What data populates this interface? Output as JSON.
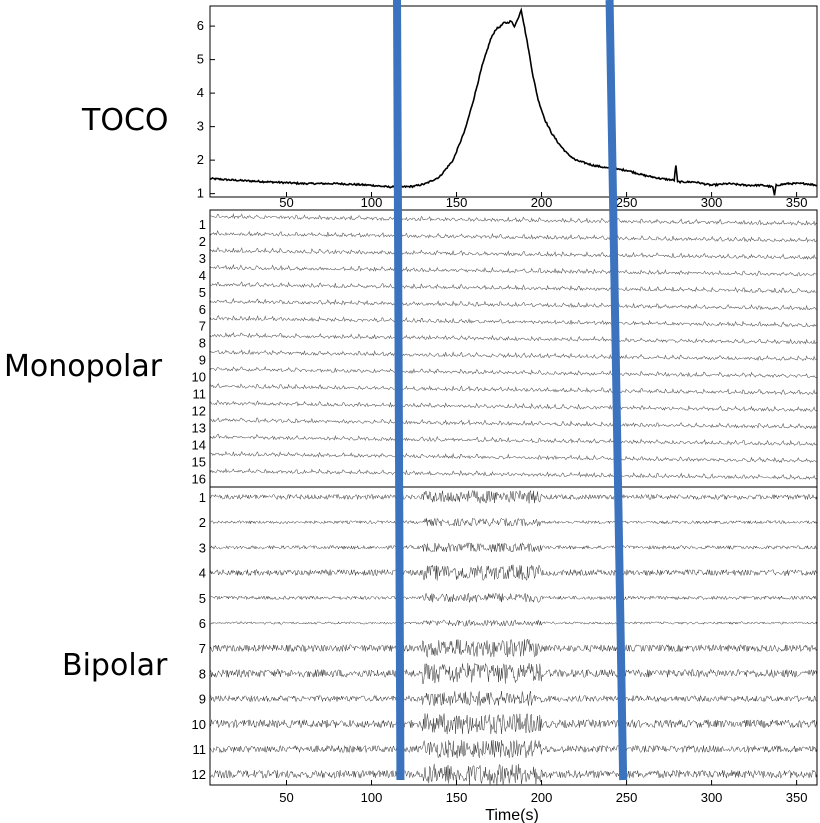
{
  "chart_data": {
    "type": "line",
    "x_axis": {
      "label": "Time(s)",
      "range": [
        5,
        362
      ],
      "ticks": [
        50,
        100,
        150,
        200,
        250,
        300,
        350
      ]
    },
    "panels": [
      {
        "name": "TOCO",
        "label": "TOCO",
        "ylim": [
          0.9,
          6.6
        ],
        "yticks": [
          1,
          2,
          3,
          4,
          5,
          6
        ],
        "series": [
          {
            "x": [
              5,
              20,
              40,
              60,
              80,
              100,
              110,
              118,
              125,
              132,
              140,
              148,
              155,
              160,
              165,
              170,
              173,
              176,
              178,
              180,
              182,
              184,
              186,
              188,
              190,
              192,
              195,
              198,
              202,
              206,
              210,
              215,
              220,
              230,
              240,
              250,
              260,
              270,
              278,
              279,
              280,
              290,
              300,
              310,
              320,
              330,
              336,
              337,
              338,
              345,
              355,
              362
            ],
            "y": [
              1.45,
              1.4,
              1.35,
              1.3,
              1.3,
              1.25,
              1.2,
              1.2,
              1.22,
              1.3,
              1.5,
              2.0,
              2.9,
              3.8,
              4.8,
              5.6,
              5.9,
              6.0,
              6.1,
              6.1,
              6.15,
              6.0,
              6.2,
              6.5,
              5.95,
              5.4,
              4.5,
              3.8,
              3.2,
              2.8,
              2.5,
              2.2,
              2.0,
              1.85,
              1.75,
              1.7,
              1.55,
              1.45,
              1.4,
              1.85,
              1.35,
              1.35,
              1.25,
              1.3,
              1.25,
              1.25,
              1.2,
              0.95,
              1.25,
              1.3,
              1.3,
              1.25
            ]
          }
        ]
      },
      {
        "name": "Monopolar",
        "label": "Monopolar",
        "channels": [
          "1",
          "2",
          "3",
          "4",
          "5",
          "6",
          "7",
          "8",
          "9",
          "10",
          "11",
          "12",
          "13",
          "14",
          "15",
          "16"
        ]
      },
      {
        "name": "Bipolar",
        "label": "Bipolar",
        "channels": [
          "1",
          "2",
          "3",
          "4",
          "5",
          "6",
          "7",
          "8",
          "9",
          "10",
          "11",
          "12"
        ]
      }
    ],
    "markers": [
      {
        "x_top": 115,
        "x_bottom": 117,
        "color": "#3B73BE"
      },
      {
        "x_top": 240,
        "x_bottom": 248,
        "color": "#3B73BE"
      }
    ],
    "colors": {
      "line": "#000000",
      "marker": "#3B73BE",
      "background": "#ffffff"
    }
  }
}
